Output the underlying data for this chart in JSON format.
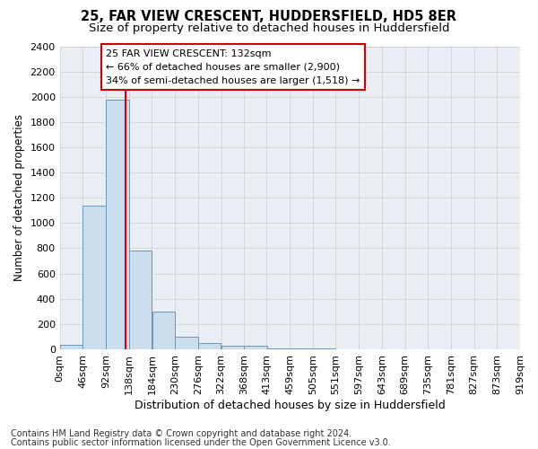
{
  "title1": "25, FAR VIEW CRESCENT, HUDDERSFIELD, HD5 8ER",
  "title2": "Size of property relative to detached houses in Huddersfield",
  "xlabel": "Distribution of detached houses by size in Huddersfield",
  "ylabel": "Number of detached properties",
  "footnote1": "Contains HM Land Registry data © Crown copyright and database right 2024.",
  "footnote2": "Contains public sector information licensed under the Open Government Licence v3.0.",
  "annotation_line1": "25 FAR VIEW CRESCENT: 132sqm",
  "annotation_line2": "← 66% of detached houses are smaller (2,900)",
  "annotation_line3": "34% of semi-detached houses are larger (1,518) →",
  "property_size": 132,
  "bin_edges": [
    0,
    46,
    92,
    138,
    184,
    230,
    276,
    322,
    368,
    413,
    459,
    505,
    551,
    597,
    643,
    689,
    735,
    781,
    827,
    873,
    919
  ],
  "bar_values": [
    35,
    1140,
    1980,
    780,
    300,
    100,
    50,
    30,
    30,
    5,
    5,
    5,
    0,
    0,
    0,
    0,
    0,
    0,
    0,
    0
  ],
  "bar_color": "#ccdded",
  "bar_edge_color": "#6699bb",
  "red_line_color": "#dd0000",
  "annotation_box_edge_color": "#cc0000",
  "grid_color": "#cccccc",
  "plot_bg_color": "#e8eef4",
  "ylim": [
    0,
    2400
  ],
  "yticks": [
    0,
    200,
    400,
    600,
    800,
    1000,
    1200,
    1400,
    1600,
    1800,
    2000,
    2200,
    2400
  ],
  "title1_fontsize": 10.5,
  "title2_fontsize": 9.5,
  "xlabel_fontsize": 9,
  "ylabel_fontsize": 8.5,
  "tick_fontsize": 8,
  "annotation_fontsize": 8,
  "footnote_fontsize": 7
}
